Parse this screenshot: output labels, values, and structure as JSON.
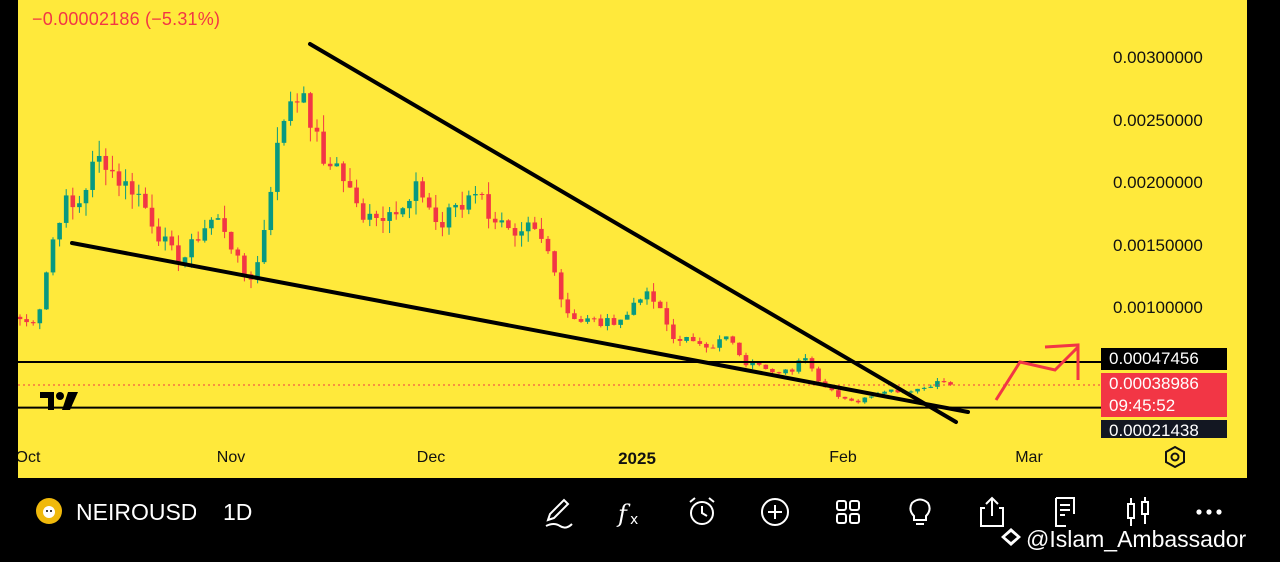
{
  "header": {
    "change": "−0.00002186 (−5.31%)"
  },
  "watermark_logo": "TV",
  "price_scale": {
    "ticks": [
      "0.00300000",
      "0.00250000",
      "0.00200000",
      "0.00150000",
      "0.00100000"
    ],
    "resistance_tag": "0.00047456",
    "current_price_tag": "0.00038986",
    "countdown_tag": "09:45:52",
    "support_tag": "0.00021438"
  },
  "time_axis": {
    "ticks": [
      {
        "label": "Oct",
        "bold": false
      },
      {
        "label": "Nov",
        "bold": false
      },
      {
        "label": "Dec",
        "bold": false
      },
      {
        "label": "2025",
        "bold": true
      },
      {
        "label": "Feb",
        "bold": false
      },
      {
        "label": "Mar",
        "bold": false
      }
    ]
  },
  "colors": {
    "background": "#FFE93B",
    "up": "#089981",
    "down": "#F23645",
    "trendline": "#000000",
    "arrow": "#F23645",
    "current_price": "#F23645",
    "tag_dark": "#131722"
  },
  "toolbar": {
    "symbol": "NEIROUSDT",
    "interval": "1D",
    "icons": [
      "pencil-icon",
      "fx-icon",
      "alarm-icon",
      "plus-circle-icon",
      "grid-icon",
      "lightbulb-icon",
      "share-icon",
      "notes-icon",
      "candles-icon",
      "more-icon"
    ]
  },
  "watermark": "@Islam_Ambassador",
  "chart_data": {
    "type": "candlestick",
    "x_ticks": [
      "Oct",
      "Nov",
      "Dec",
      "2025",
      "Feb",
      "Mar"
    ],
    "y_ticks": [
      0.003,
      0.0025,
      0.002,
      0.0015,
      0.001
    ],
    "ylim": [
      5e-05,
      0.0033
    ],
    "grid": false,
    "approx_daily_close": [
      0.00092,
      0.00088,
      0.00096,
      0.00135,
      0.0017,
      0.00185,
      0.00178,
      0.00195,
      0.00215,
      0.00222,
      0.0021,
      0.002,
      0.00198,
      0.0019,
      0.00175,
      0.0016,
      0.0015,
      0.0014,
      0.00142,
      0.00155,
      0.00165,
      0.00172,
      0.00168,
      0.0015,
      0.0013,
      0.00125,
      0.0014,
      0.0019,
      0.0023,
      0.00265,
      0.00275,
      0.0026,
      0.0024,
      0.00215,
      0.0022,
      0.00205,
      0.0019,
      0.00175,
      0.0018,
      0.0017,
      0.00185,
      0.00175,
      0.0018,
      0.00195,
      0.0019,
      0.0017,
      0.00165,
      0.00185,
      0.0018,
      0.002,
      0.0019,
      0.00175,
      0.0017,
      0.0016,
      0.0015,
      0.00165,
      0.0016,
      0.0015,
      0.00135,
      0.001,
      0.00095,
      0.0009,
      0.00092,
      0.00088,
      0.0009,
      0.00092,
      0.00095,
      0.00112,
      0.0011,
      0.00105,
      0.0009,
      0.00075,
      0.00078,
      0.00072,
      0.00074,
      0.0007,
      0.00075,
      0.00078,
      0.00062,
      0.00055,
      0.00058,
      0.00054,
      0.0005,
      0.00052,
      0.00048,
      0.00066,
      0.00052,
      0.0004,
      0.00036,
      0.0003,
      0.00028,
      0.00026,
      0.0003,
      0.00033,
      0.00036,
      0.00035,
      0.00034,
      0.00036,
      0.00037,
      0.0004,
      0.00043,
      0.00039
    ],
    "trendlines": [
      {
        "name": "upper",
        "from": [
          "2024-11-06",
          0.0031
        ],
        "to": [
          "2025-02-14",
          0.00018
        ]
      },
      {
        "name": "lower",
        "from": [
          "2024-10-04",
          0.0015
        ],
        "to": [
          "2025-02-18",
          0.00023
        ]
      }
    ],
    "horizontal_levels": [
      0.00047456,
      0.00021438
    ],
    "current_price": 0.00038986,
    "projection_arrow": [
      [
        0.00025,
        0.0006
      ],
      [
        0.0005,
        0.0004
      ],
      [
        0.00072,
        0.0007
      ]
    ]
  }
}
